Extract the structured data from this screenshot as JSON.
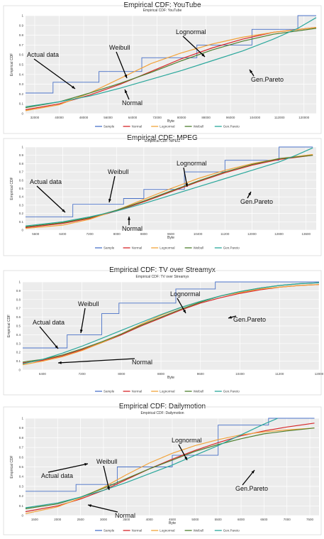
{
  "legend_labels": [
    "Sample",
    "Normal",
    "Lognormal",
    "Weibull",
    "Gen.Pareto"
  ],
  "series_colors": {
    "Sample": "#4a72c8",
    "Normal": "#d62728",
    "Lognormal": "#f2a33a",
    "Weibull": "#4f7f2f",
    "Gen.Pareto": "#2aa79b"
  },
  "chart_data": [
    {
      "type": "line",
      "title": "Empirical CDF: YouTube",
      "subtitle": "Empirical CDF: YouTube",
      "xlabel": "Byte",
      "ylabel": "Empirical CDF",
      "xlim": [
        29000,
        124000
      ],
      "ylim": [
        0,
        1
      ],
      "x_ticks": [
        "32000",
        "40000",
        "48000",
        "56000",
        "64000",
        "72000",
        "80000",
        "88000",
        "96000",
        "104000",
        "112000",
        "120000"
      ],
      "y_ticks": [
        "0",
        "0.1",
        "0.2",
        "0.3",
        "0.4",
        "0.5",
        "0.6",
        "0.7",
        "0.8",
        "0.9",
        "1"
      ],
      "annotations": [
        "Actual data",
        "Weibull",
        "Lognormal",
        "Normal",
        "Gen.Pareto"
      ],
      "series": [
        {
          "name": "Sample",
          "x": [
            29000,
            38000,
            38000,
            53000,
            53000,
            67000,
            67000,
            85000,
            85000,
            103000,
            103000,
            118000,
            118000,
            124000
          ],
          "y": [
            0.21,
            0.21,
            0.32,
            0.32,
            0.43,
            0.43,
            0.57,
            0.57,
            0.7,
            0.7,
            0.86,
            0.86,
            1.0,
            1.0
          ]
        },
        {
          "name": "Normal",
          "x": [
            29000,
            40000,
            50000,
            60000,
            70000,
            80000,
            90000,
            100000,
            110000,
            124000
          ],
          "y": [
            0.04,
            0.1,
            0.19,
            0.3,
            0.43,
            0.56,
            0.67,
            0.76,
            0.83,
            0.88
          ]
        },
        {
          "name": "Lognormal",
          "x": [
            29000,
            40000,
            50000,
            60000,
            70000,
            80000,
            90000,
            100000,
            110000,
            124000
          ],
          "y": [
            0.03,
            0.09,
            0.21,
            0.36,
            0.51,
            0.62,
            0.71,
            0.78,
            0.83,
            0.88
          ]
        },
        {
          "name": "Weibull",
          "x": [
            29000,
            40000,
            50000,
            60000,
            70000,
            80000,
            90000,
            100000,
            110000,
            124000
          ],
          "y": [
            0.06,
            0.12,
            0.21,
            0.31,
            0.42,
            0.54,
            0.65,
            0.74,
            0.81,
            0.87
          ]
        },
        {
          "name": "Gen.Pareto",
          "x": [
            29000,
            40000,
            50000,
            60000,
            70000,
            80000,
            90000,
            100000,
            110000,
            118000,
            124000
          ],
          "y": [
            0.07,
            0.12,
            0.18,
            0.26,
            0.35,
            0.44,
            0.54,
            0.64,
            0.76,
            0.87,
            0.98
          ]
        }
      ]
    },
    {
      "type": "line",
      "title": "Empirical CDF: MPEG",
      "subtitle": "Empirical CDF: MPEG",
      "xlabel": "Byte",
      "ylabel": "Empirical CDF",
      "xlim": [
        5300,
        13900
      ],
      "ylim": [
        0,
        1
      ],
      "x_ticks": [
        "5600",
        "6400",
        "7200",
        "8000",
        "8800",
        "9600",
        "10400",
        "11200",
        "12000",
        "12800",
        "13600"
      ],
      "y_ticks": [
        "0",
        "0.1",
        "0.2",
        "0.3",
        "0.4",
        "0.5",
        "0.6",
        "0.7",
        "0.8",
        "0.9",
        "1"
      ],
      "annotations": [
        "Actual data",
        "Weibull",
        "Lognormal",
        "Normal",
        "Gen.Pareto"
      ],
      "series": [
        {
          "name": "Sample",
          "x": [
            5300,
            6700,
            6700,
            8200,
            8200,
            8800,
            8800,
            10000,
            10000,
            11200,
            11200,
            12800,
            12800,
            13800
          ],
          "y": [
            0.16,
            0.16,
            0.31,
            0.31,
            0.38,
            0.38,
            0.49,
            0.49,
            0.7,
            0.7,
            0.84,
            0.84,
            1.0,
            1.0
          ]
        },
        {
          "name": "Normal",
          "x": [
            5300,
            6400,
            7200,
            8000,
            8800,
            9600,
            10400,
            11200,
            12000,
            12800,
            13800
          ],
          "y": [
            0.03,
            0.08,
            0.14,
            0.23,
            0.34,
            0.46,
            0.58,
            0.69,
            0.78,
            0.85,
            0.9
          ]
        },
        {
          "name": "Lognormal",
          "x": [
            5300,
            6400,
            7200,
            8000,
            8800,
            9600,
            10400,
            11200,
            12000,
            12800,
            13800
          ],
          "y": [
            0.02,
            0.06,
            0.13,
            0.24,
            0.37,
            0.5,
            0.62,
            0.72,
            0.8,
            0.86,
            0.91
          ]
        },
        {
          "name": "Weibull",
          "x": [
            5300,
            6400,
            7200,
            8000,
            8800,
            9600,
            10400,
            11200,
            12000,
            12800,
            13800
          ],
          "y": [
            0.04,
            0.09,
            0.15,
            0.24,
            0.35,
            0.47,
            0.59,
            0.7,
            0.79,
            0.86,
            0.9
          ]
        },
        {
          "name": "Gen.Pareto",
          "x": [
            5300,
            6400,
            7200,
            8000,
            8800,
            9600,
            10400,
            11200,
            12000,
            12800,
            13300,
            13800
          ],
          "y": [
            0.05,
            0.1,
            0.16,
            0.23,
            0.32,
            0.42,
            0.52,
            0.62,
            0.72,
            0.82,
            0.9,
            0.99
          ]
        }
      ]
    },
    {
      "type": "line",
      "title": "Empirical CDF: TV over Streamyx",
      "subtitle": "Empirical CDF: TV over Streamyx",
      "xlabel": "Byte",
      "ylabel": "Empirical CDF",
      "xlim": [
        6000,
        12000
      ],
      "ylim": [
        0,
        1
      ],
      "x_ticks": [
        "6400",
        "7200",
        "8000",
        "8800",
        "9600",
        "10400",
        "11200",
        "12000"
      ],
      "y_ticks": [
        "0",
        "0.1",
        "0.2",
        "0.3",
        "0.4",
        "0.5",
        "0.6",
        "0.7",
        "0.8",
        "0.9",
        "1"
      ],
      "annotations": [
        "Actual data",
        "Weibull",
        "Lognormal",
        "Normal",
        "Gen.Pareto"
      ],
      "series": [
        {
          "name": "Sample",
          "x": [
            6000,
            6900,
            6900,
            7600,
            7600,
            7950,
            7950,
            9100,
            9100,
            9900,
            9900,
            10800,
            10800,
            12000
          ],
          "y": [
            0.25,
            0.25,
            0.4,
            0.4,
            0.64,
            0.64,
            0.76,
            0.76,
            0.92,
            0.92,
            1.0,
            1.0,
            1.0,
            1.0
          ]
        },
        {
          "name": "Normal",
          "x": [
            6000,
            6400,
            6800,
            7200,
            7600,
            8000,
            8400,
            8800,
            9200,
            9600,
            10000,
            10400,
            10800,
            11200,
            11600,
            12000
          ],
          "y": [
            0.08,
            0.11,
            0.16,
            0.23,
            0.31,
            0.4,
            0.5,
            0.59,
            0.68,
            0.76,
            0.82,
            0.87,
            0.91,
            0.94,
            0.96,
            0.97
          ]
        },
        {
          "name": "Lognormal",
          "x": [
            6000,
            6400,
            6800,
            7200,
            7600,
            8000,
            8400,
            8800,
            9200,
            9600,
            10000,
            10400,
            10800,
            11200,
            11600,
            12000
          ],
          "y": [
            0.06,
            0.1,
            0.15,
            0.22,
            0.31,
            0.41,
            0.52,
            0.62,
            0.71,
            0.78,
            0.84,
            0.88,
            0.92,
            0.94,
            0.96,
            0.97
          ]
        },
        {
          "name": "Weibull",
          "x": [
            6000,
            6400,
            6800,
            7200,
            7600,
            8000,
            8400,
            8800,
            9200,
            9600,
            10000,
            10400,
            10800,
            11200,
            11600,
            12000
          ],
          "y": [
            0.09,
            0.12,
            0.17,
            0.24,
            0.32,
            0.41,
            0.51,
            0.6,
            0.69,
            0.77,
            0.84,
            0.89,
            0.93,
            0.96,
            0.98,
            0.99
          ]
        },
        {
          "name": "Gen.Pareto",
          "x": [
            6000,
            6400,
            6800,
            7200,
            7600,
            8000,
            8400,
            8800,
            9200,
            9600,
            10000,
            10400,
            10800,
            11200,
            11600,
            12000
          ],
          "y": [
            0.07,
            0.12,
            0.19,
            0.27,
            0.36,
            0.45,
            0.54,
            0.63,
            0.71,
            0.78,
            0.84,
            0.89,
            0.93,
            0.96,
            0.98,
            0.99
          ]
        }
      ]
    },
    {
      "type": "line",
      "title": "Empirical CDF: Dailymotion",
      "subtitle": "Empirical CDF: Dailymotion",
      "xlabel": "Byte",
      "ylabel": "Empirical CDF",
      "xlim": [
        1300,
        7700
      ],
      "ylim": [
        0,
        1
      ],
      "x_ticks": [
        "1500",
        "2000",
        "2500",
        "3000",
        "3500",
        "4000",
        "4500",
        "5000",
        "5500",
        "6000",
        "6500",
        "7000",
        "7500"
      ],
      "y_ticks": [
        "0",
        "0.1",
        "0.2",
        "0.3",
        "0.4",
        "0.5",
        "0.6",
        "0.7",
        "0.8",
        "0.9",
        "1"
      ],
      "annotations": [
        "Actual data",
        "Weibull",
        "Lognormal",
        "Normal",
        "Gen.Pareto"
      ],
      "series": [
        {
          "name": "Sample",
          "x": [
            1300,
            2400,
            2400,
            3300,
            3300,
            4500,
            4500,
            5500,
            5500,
            6600,
            6600,
            7600
          ],
          "y": [
            0.25,
            0.25,
            0.32,
            0.32,
            0.5,
            0.5,
            0.62,
            0.62,
            0.93,
            0.93,
            1.0,
            1.0
          ]
        },
        {
          "name": "Normal",
          "x": [
            1300,
            2000,
            2500,
            3000,
            3500,
            4000,
            4500,
            5000,
            5500,
            6000,
            6500,
            7000,
            7600
          ],
          "y": [
            0.04,
            0.1,
            0.17,
            0.26,
            0.37,
            0.48,
            0.58,
            0.67,
            0.75,
            0.82,
            0.87,
            0.91,
            0.95
          ]
        },
        {
          "name": "Lognormal",
          "x": [
            1300,
            2000,
            2500,
            3000,
            3500,
            4000,
            4500,
            5000,
            5500,
            6000,
            6500,
            7000,
            7600
          ],
          "y": [
            0.02,
            0.09,
            0.18,
            0.29,
            0.42,
            0.54,
            0.64,
            0.72,
            0.78,
            0.83,
            0.86,
            0.88,
            0.9
          ]
        },
        {
          "name": "Weibull",
          "x": [
            1300,
            2000,
            2500,
            3000,
            3500,
            4000,
            4500,
            5000,
            5500,
            6000,
            6500,
            7000,
            7600
          ],
          "y": [
            0.07,
            0.12,
            0.19,
            0.28,
            0.38,
            0.48,
            0.57,
            0.66,
            0.73,
            0.79,
            0.84,
            0.87,
            0.9
          ]
        },
        {
          "name": "Gen.Pareto",
          "x": [
            1300,
            2000,
            2500,
            3000,
            3500,
            4000,
            4500,
            5000,
            5500,
            6000,
            6500,
            6800
          ],
          "y": [
            0.08,
            0.13,
            0.19,
            0.26,
            0.34,
            0.43,
            0.52,
            0.62,
            0.72,
            0.83,
            0.94,
            1.0
          ]
        }
      ]
    }
  ]
}
